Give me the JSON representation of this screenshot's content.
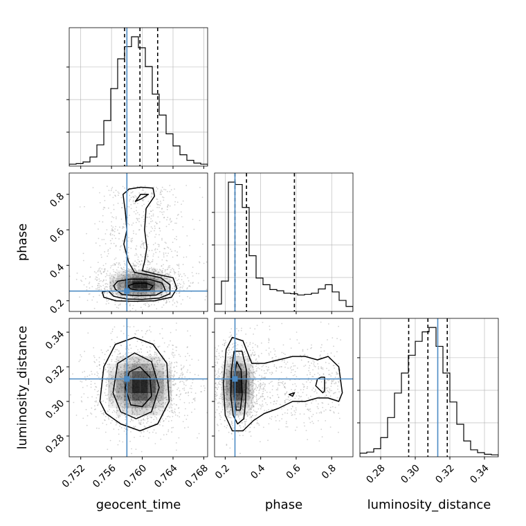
{
  "chart_data": {
    "type": "corner",
    "parameters": [
      "geocent_time",
      "phase",
      "luminosity_distance"
    ],
    "axis_labels": {
      "x": [
        "geocent_time",
        "phase",
        "luminosity_distance"
      ],
      "y_phase": "phase",
      "y_luminosity_distance": "luminosity_distance"
    },
    "ranges": {
      "geocent_time": [
        0.7505,
        0.7685
      ],
      "phase": [
        0.14,
        0.92
      ],
      "luminosity_distance": [
        0.268,
        0.348
      ]
    },
    "ticks": {
      "geocent_time": [
        "0.752",
        "0.756",
        "0.760",
        "0.764",
        "0.768"
      ],
      "phase": [
        "0.2",
        "0.4",
        "0.6",
        "0.8"
      ],
      "luminosity_distance": [
        "0.28",
        "0.30",
        "0.32",
        "0.34"
      ]
    },
    "truths": {
      "geocent_time": 0.758,
      "phase": 0.255,
      "luminosity_distance": 0.313
    },
    "quantiles": {
      "geocent_time": [
        0.7577,
        0.7597,
        0.762
      ],
      "phase": [
        0.255,
        0.32,
        0.59
      ],
      "luminosity_distance": [
        0.2962,
        0.3073,
        0.3185
      ]
    },
    "histograms": {
      "geocent_time": {
        "edges": [
          0.7505,
          0.7514,
          0.7523,
          0.7532,
          0.7541,
          0.755,
          0.7559,
          0.7568,
          0.7577,
          0.7586,
          0.7595,
          0.7604,
          0.7613,
          0.7622,
          0.7631,
          0.764,
          0.7649,
          0.7658,
          0.7667,
          0.7676,
          0.7685
        ],
        "counts": [
          1,
          2,
          5,
          14,
          36,
          80,
          138,
          192,
          214,
          232,
          212,
          178,
          128,
          90,
          56,
          34,
          18,
          8,
          3,
          1
        ]
      },
      "phase": {
        "edges": [
          0.14,
          0.179,
          0.218,
          0.257,
          0.296,
          0.335,
          0.374,
          0.413,
          0.452,
          0.491,
          0.53,
          0.569,
          0.608,
          0.647,
          0.686,
          0.725,
          0.764,
          0.803,
          0.842,
          0.881,
          0.92
        ],
        "counts": [
          10,
          48,
          212,
          208,
          170,
          90,
          53,
          42,
          34,
          32,
          28,
          27,
          25,
          26,
          28,
          35,
          42,
          30,
          16,
          6
        ]
      },
      "luminosity_distance": {
        "edges": [
          0.268,
          0.272,
          0.276,
          0.28,
          0.284,
          0.288,
          0.292,
          0.296,
          0.3,
          0.304,
          0.308,
          0.312,
          0.316,
          0.32,
          0.324,
          0.328,
          0.332,
          0.336,
          0.34,
          0.344,
          0.348
        ],
        "counts": [
          4,
          6,
          12,
          32,
          68,
          112,
          148,
          180,
          205,
          222,
          230,
          196,
          148,
          96,
          56,
          26,
          10,
          5,
          2,
          1
        ]
      }
    },
    "joint": {
      "phase_vs_geocent_time": {
        "x_param": "geocent_time",
        "y_param": "phase",
        "mode": [
          0.7597,
          0.29
        ],
        "spread": [
          0.0022,
          0.045
        ],
        "tail": {
          "y_range": [
            0.35,
            0.85
          ],
          "x_spread": 0.0014
        },
        "contours": [
          [
            [
              0.7556,
              0.255
            ],
            [
              0.7563,
              0.225
            ],
            [
              0.758,
              0.21
            ],
            [
              0.76,
              0.208
            ],
            [
              0.7622,
              0.215
            ],
            [
              0.7636,
              0.24
            ],
            [
              0.7636,
              0.29
            ],
            [
              0.7624,
              0.33
            ],
            [
              0.7608,
              0.345
            ],
            [
              0.759,
              0.36
            ],
            [
              0.7582,
              0.42
            ],
            [
              0.7576,
              0.52
            ],
            [
              0.758,
              0.6
            ],
            [
              0.7578,
              0.7
            ],
            [
              0.7575,
              0.8
            ],
            [
              0.7583,
              0.83
            ],
            [
              0.7598,
              0.84
            ],
            [
              0.7614,
              0.835
            ],
            [
              0.7616,
              0.79
            ],
            [
              0.7605,
              0.72
            ],
            [
              0.7603,
              0.6
            ],
            [
              0.7606,
              0.5
            ],
            [
              0.7603,
              0.42
            ],
            [
              0.76,
              0.37
            ],
            [
              0.7618,
              0.35
            ],
            [
              0.764,
              0.33
            ],
            [
              0.7645,
              0.27
            ],
            [
              0.7638,
              0.22
            ],
            [
              0.7616,
              0.2
            ],
            [
              0.759,
              0.197
            ],
            [
              0.7566,
              0.2
            ],
            [
              0.755,
              0.22
            ],
            [
              0.7548,
              0.25
            ],
            [
              0.7556,
              0.255
            ]
          ],
          [
            [
              0.7565,
              0.265
            ],
            [
              0.7574,
              0.235
            ],
            [
              0.7595,
              0.228
            ],
            [
              0.7618,
              0.232
            ],
            [
              0.763,
              0.26
            ],
            [
              0.7626,
              0.3
            ],
            [
              0.761,
              0.32
            ],
            [
              0.7585,
              0.322
            ],
            [
              0.7568,
              0.31
            ],
            [
              0.7563,
              0.285
            ],
            [
              0.7565,
              0.265
            ]
          ],
          [
            [
              0.7584,
              0.268
            ],
            [
              0.7595,
              0.258
            ],
            [
              0.761,
              0.262
            ],
            [
              0.7614,
              0.285
            ],
            [
              0.7604,
              0.3
            ],
            [
              0.759,
              0.298
            ],
            [
              0.7582,
              0.285
            ],
            [
              0.7584,
              0.268
            ]
          ],
          [
            [
              0.7591,
              0.76
            ],
            [
              0.7599,
              0.775
            ],
            [
              0.7608,
              0.8
            ],
            [
              0.7598,
              0.8
            ],
            [
              0.7591,
              0.76
            ]
          ]
        ]
      },
      "luminosity_distance_vs_geocent_time": {
        "x_param": "geocent_time",
        "y_param": "luminosity_distance",
        "mode": [
          0.7597,
          0.309
        ],
        "spread": [
          0.0023,
          0.0095
        ],
        "contours": [
          [
            [
              0.7545,
              0.3
            ],
            [
              0.755,
              0.32
            ],
            [
              0.7565,
              0.333
            ],
            [
              0.759,
              0.337
            ],
            [
              0.7614,
              0.333
            ],
            [
              0.7632,
              0.322
            ],
            [
              0.7635,
              0.3
            ],
            [
              0.762,
              0.287
            ],
            [
              0.7597,
              0.283
            ],
            [
              0.7572,
              0.287
            ],
            [
              0.7553,
              0.293
            ],
            [
              0.7545,
              0.3
            ]
          ],
          [
            [
              0.7562,
              0.305
            ],
            [
              0.7568,
              0.322
            ],
            [
              0.759,
              0.328
            ],
            [
              0.7612,
              0.323
            ],
            [
              0.7622,
              0.308
            ],
            [
              0.7612,
              0.294
            ],
            [
              0.7592,
              0.29
            ],
            [
              0.7572,
              0.294
            ],
            [
              0.7562,
              0.305
            ]
          ],
          [
            [
              0.7578,
              0.308
            ],
            [
              0.7583,
              0.317
            ],
            [
              0.7597,
              0.32
            ],
            [
              0.761,
              0.314
            ],
            [
              0.7612,
              0.303
            ],
            [
              0.76,
              0.297
            ],
            [
              0.7585,
              0.298
            ],
            [
              0.7578,
              0.308
            ]
          ]
        ]
      },
      "luminosity_distance_vs_phase": {
        "x_param": "phase",
        "y_param": "luminosity_distance",
        "mode": [
          0.27,
          0.309
        ],
        "spread": [
          0.05,
          0.0095
        ],
        "tail": {
          "x_range": [
            0.35,
            0.85
          ],
          "y_spread": 0.009
        },
        "contours": [
          [
            [
              0.205,
              0.33
            ],
            [
              0.24,
              0.337
            ],
            [
              0.3,
              0.335
            ],
            [
              0.35,
              0.322
            ],
            [
              0.42,
              0.322
            ],
            [
              0.5,
              0.324
            ],
            [
              0.58,
              0.326
            ],
            [
              0.65,
              0.326
            ],
            [
              0.72,
              0.324
            ],
            [
              0.78,
              0.326
            ],
            [
              0.84,
              0.32
            ],
            [
              0.86,
              0.305
            ],
            [
              0.84,
              0.3
            ],
            [
              0.78,
              0.302
            ],
            [
              0.72,
              0.302
            ],
            [
              0.65,
              0.3
            ],
            [
              0.58,
              0.3
            ],
            [
              0.5,
              0.296
            ],
            [
              0.42,
              0.293
            ],
            [
              0.36,
              0.289
            ],
            [
              0.3,
              0.283
            ],
            [
              0.24,
              0.283
            ],
            [
              0.2,
              0.292
            ],
            [
              0.19,
              0.31
            ],
            [
              0.205,
              0.33
            ]
          ],
          [
            [
              0.235,
              0.318
            ],
            [
              0.25,
              0.329
            ],
            [
              0.295,
              0.329
            ],
            [
              0.32,
              0.318
            ],
            [
              0.315,
              0.3
            ],
            [
              0.305,
              0.29
            ],
            [
              0.27,
              0.287
            ],
            [
              0.245,
              0.292
            ],
            [
              0.232,
              0.303
            ],
            [
              0.235,
              0.318
            ]
          ],
          [
            [
              0.25,
              0.313
            ],
            [
              0.265,
              0.323
            ],
            [
              0.29,
              0.318
            ],
            [
              0.296,
              0.304
            ],
            [
              0.285,
              0.295
            ],
            [
              0.262,
              0.295
            ],
            [
              0.252,
              0.303
            ],
            [
              0.25,
              0.313
            ]
          ],
          [
            [
              0.56,
              0.304
            ],
            [
              0.59,
              0.305
            ],
            [
              0.58,
              0.303
            ],
            [
              0.56,
              0.304
            ]
          ],
          [
            [
              0.71,
              0.309
            ],
            [
              0.72,
              0.313
            ],
            [
              0.74,
              0.314
            ],
            [
              0.76,
              0.314
            ],
            [
              0.76,
              0.306
            ],
            [
              0.75,
              0.305
            ],
            [
              0.73,
              0.307
            ],
            [
              0.71,
              0.309
            ]
          ]
        ]
      }
    },
    "colors": {
      "truth": "#4c8bc4",
      "line": "#000000",
      "grid": "#b0b0b0",
      "density": "#000000",
      "points": "#9a9a9a"
    },
    "grid": true,
    "legend": "none"
  }
}
